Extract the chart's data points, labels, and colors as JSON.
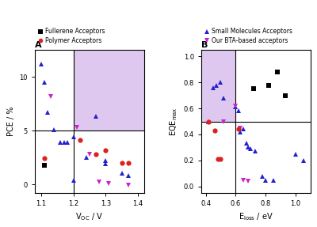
{
  "panel_A": {
    "title": "A",
    "xlabel": "V_{OC} / V",
    "ylabel": "PCE / %",
    "xlim": [
      1.08,
      1.42
    ],
    "ylim": [
      -0.8,
      12.5
    ],
    "vline": 1.2,
    "hline": 5.0,
    "shade_color": "#dfc8ef",
    "xticks": [
      1.1,
      1.2,
      1.3,
      1.4
    ],
    "yticks": [
      0,
      5,
      10
    ],
    "blue_triangles_up": [
      [
        1.1,
        11.2
      ],
      [
        1.11,
        9.5
      ],
      [
        1.12,
        6.7
      ],
      [
        1.14,
        5.1
      ],
      [
        1.16,
        3.9
      ],
      [
        1.17,
        3.9
      ],
      [
        1.18,
        3.9
      ],
      [
        1.2,
        4.4
      ],
      [
        1.2,
        0.4
      ],
      [
        1.24,
        2.5
      ],
      [
        1.27,
        6.3
      ],
      [
        1.3,
        2.2
      ],
      [
        1.3,
        1.9
      ],
      [
        1.35,
        1.0
      ],
      [
        1.37,
        0.8
      ]
    ],
    "pink_triangles_down": [
      [
        1.13,
        8.2
      ],
      [
        1.21,
        5.3
      ],
      [
        1.25,
        2.8
      ],
      [
        1.28,
        0.2
      ],
      [
        1.31,
        0.1
      ],
      [
        1.37,
        -0.1
      ]
    ],
    "red_circles": [
      [
        1.11,
        2.4
      ],
      [
        1.22,
        4.1
      ],
      [
        1.27,
        2.8
      ],
      [
        1.3,
        3.2
      ],
      [
        1.35,
        2.0
      ],
      [
        1.37,
        2.0
      ]
    ],
    "black_squares": [
      [
        1.11,
        1.8
      ]
    ],
    "legend": [
      {
        "marker": "s",
        "color": "#000000",
        "label": "Fullerene Acceptors"
      },
      {
        "marker": "o",
        "color": "#dd2020",
        "label": "Polymer Acceptors"
      }
    ]
  },
  "panel_B": {
    "title": "B",
    "xlabel": "E_{loss} / eV",
    "ylabel": "EQE_{max}",
    "xlim": [
      0.37,
      1.1
    ],
    "ylim": [
      -0.05,
      1.05
    ],
    "vline": 0.6,
    "hline": 0.5,
    "shade_color": "#dfc8ef",
    "xticks": [
      0.4,
      0.6,
      0.8,
      1.0
    ],
    "yticks": [
      0.0,
      0.2,
      0.4,
      0.6,
      0.8,
      1.0
    ],
    "blue_triangles_up": [
      [
        0.42,
        0.5
      ],
      [
        0.45,
        0.76
      ],
      [
        0.47,
        0.78
      ],
      [
        0.5,
        0.8
      ],
      [
        0.52,
        0.68
      ],
      [
        0.6,
        0.61
      ],
      [
        0.62,
        0.58
      ],
      [
        0.63,
        0.42
      ],
      [
        0.65,
        0.44
      ],
      [
        0.67,
        0.33
      ],
      [
        0.68,
        0.3
      ],
      [
        0.7,
        0.29
      ],
      [
        0.73,
        0.27
      ],
      [
        0.78,
        0.08
      ],
      [
        0.8,
        0.05
      ],
      [
        0.85,
        0.05
      ],
      [
        1.0,
        0.25
      ],
      [
        1.05,
        0.2
      ]
    ],
    "pink_triangles_down": [
      [
        0.52,
        0.5
      ],
      [
        0.6,
        0.62
      ],
      [
        0.63,
        0.45
      ],
      [
        0.65,
        0.05
      ],
      [
        0.68,
        0.04
      ]
    ],
    "red_circles": [
      [
        0.42,
        0.5
      ],
      [
        0.46,
        0.43
      ],
      [
        0.48,
        0.21
      ],
      [
        0.5,
        0.21
      ],
      [
        0.62,
        0.44
      ]
    ],
    "black_squares": [
      [
        0.72,
        0.75
      ],
      [
        0.82,
        0.78
      ],
      [
        0.88,
        0.88
      ],
      [
        0.93,
        0.7
      ]
    ],
    "legend": [
      {
        "marker": "^",
        "color": "#2222cc",
        "label": "Small Molecules Acceptors"
      },
      {
        "marker": "v",
        "color": "#cc22cc",
        "label": "Our BTA-based acceptors"
      }
    ]
  },
  "colors": {
    "blue": "#2222cc",
    "pink": "#cc22cc",
    "red": "#dd2020",
    "black": "#000000"
  },
  "marker_size": 4.5
}
